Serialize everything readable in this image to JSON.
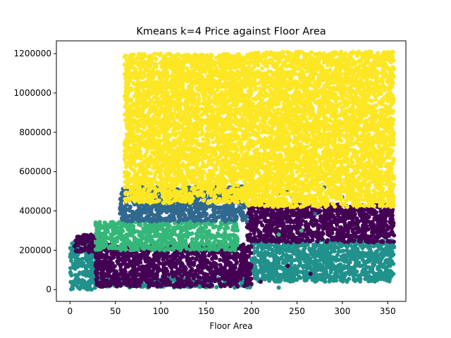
{
  "chart_data": {
    "type": "scatter",
    "title": "Kmeans k=4 Price against Floor Area",
    "xlabel": "Floor Area",
    "ylabel": "",
    "xlim": [
      -15,
      370
    ],
    "ylim": [
      -60000,
      1265000
    ],
    "xticks": [
      0,
      50,
      100,
      150,
      200,
      250,
      300,
      350
    ],
    "xtick_labels": [
      "0",
      "50",
      "100",
      "150",
      "200",
      "250",
      "300",
      "350"
    ],
    "yticks": [
      0,
      200000,
      400000,
      600000,
      800000,
      1000000,
      1200000
    ],
    "ytick_labels": [
      "0",
      "200000",
      "400000",
      "600000",
      "800000",
      "1000000",
      "1200000"
    ],
    "grid": false,
    "legend": "none",
    "colors": {
      "cluster_yellow": "#fde725",
      "cluster_purple": "#440154",
      "cluster_green": "#35b779",
      "cluster_blue": "#31688e",
      "cluster_teal": "#21918c"
    },
    "series": [
      {
        "color": "#21918c",
        "regions": [
          {
            "x": [
              0,
              30
            ],
            "y": [
              0,
              245000
            ]
          },
          {
            "x": [
              30,
              200
            ],
            "y": [
              10000,
              60000
            ]
          },
          {
            "x": [
              200,
              357
            ],
            "y": [
              40000,
              250000
            ]
          }
        ],
        "points": [
          [
            230,
            10000
          ],
          [
            250,
            50000
          ],
          [
            280,
            230000
          ],
          [
            320,
            170000
          ]
        ]
      },
      {
        "color": "#440154",
        "regions": [
          {
            "x": [
              5,
              35
            ],
            "y": [
              190000,
              280000
            ]
          },
          {
            "x": [
              28,
              200
            ],
            "y": [
              15000,
              230000
            ]
          },
          {
            "x": [
              195,
              357
            ],
            "y": [
              240000,
              435000
            ]
          }
        ],
        "points": [
          [
            175,
            90000
          ],
          [
            195,
            60000
          ],
          [
            210,
            40000
          ],
          [
            240,
            120000
          ],
          [
            265,
            80000
          ]
        ]
      },
      {
        "color": "#35b779",
        "regions": [
          {
            "x": [
              28,
              185
            ],
            "y": [
              200000,
              345000
            ]
          }
        ],
        "points": [
          [
            180,
            320000
          ],
          [
            230,
            280000
          ],
          [
            255,
            300000
          ]
        ]
      },
      {
        "color": "#31688e",
        "regions": [
          {
            "x": [
              55,
              195
            ],
            "y": [
              345000,
              525000
            ]
          }
        ],
        "points": [
          [
            215,
            505000
          ],
          [
            240,
            505000
          ],
          [
            255,
            510000
          ],
          [
            280,
            520000
          ],
          [
            300,
            470000
          ],
          [
            260,
            440000
          ],
          [
            245,
            470000
          ],
          [
            230,
            490000
          ],
          [
            270,
            385000
          ]
        ]
      },
      {
        "color": "#fde725",
        "regions": [
          {
            "x": [
              60,
              195
            ],
            "y": [
              440000,
              1200000
            ]
          },
          {
            "x": [
              195,
              357
            ],
            "y": [
              420000,
              1210000
            ]
          }
        ],
        "points": [
          [
            240,
            1185000
          ],
          [
            270,
            990000
          ],
          [
            355,
            1210000
          ]
        ]
      }
    ]
  }
}
